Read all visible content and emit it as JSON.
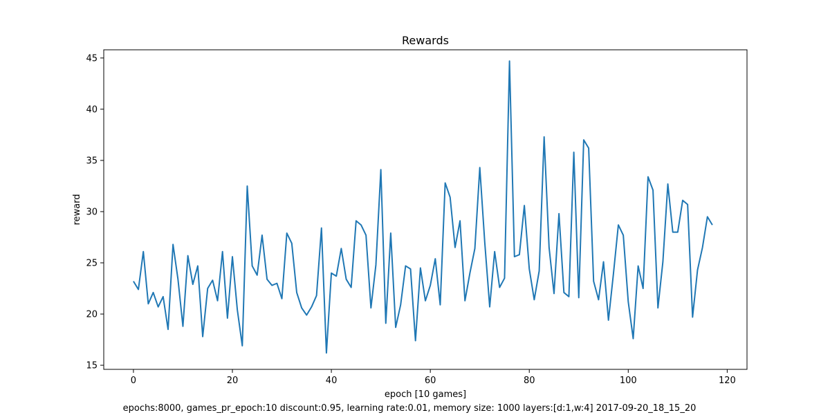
{
  "chart_data": {
    "type": "line",
    "title": "Rewards",
    "xlabel": "epoch [10 games]",
    "ylabel": "reward",
    "caption": "epochs:8000, games_pr_epoch:10 discount:0.95, learning rate:0.01, memory size: 1000 layers:[d:1,w:4] 2017-09-20_18_15_20",
    "xlim": [
      -6,
      124
    ],
    "ylim": [
      14.6,
      45.8
    ],
    "xticks": [
      0,
      20,
      40,
      60,
      80,
      100,
      120
    ],
    "yticks": [
      15,
      20,
      25,
      30,
      35,
      40,
      45
    ],
    "grid": false,
    "line_color": "#1f77b4",
    "series": [
      {
        "x_start": 0,
        "x_step": 1,
        "values": [
          23.2,
          22.4,
          26.1,
          21.0,
          22.1,
          20.7,
          21.7,
          18.5,
          26.8,
          23.4,
          18.8,
          25.7,
          22.9,
          24.7,
          17.8,
          22.5,
          23.3,
          21.3,
          26.1,
          19.6,
          25.6,
          20.4,
          16.9,
          32.5,
          24.7,
          23.8,
          27.7,
          23.4,
          22.8,
          23.0,
          21.5,
          27.9,
          26.9,
          22.1,
          20.6,
          19.9,
          20.7,
          21.8,
          28.4,
          16.2,
          24.0,
          23.7,
          26.4,
          23.4,
          22.6,
          29.1,
          28.7,
          27.7,
          20.6,
          24.8,
          34.1,
          19.1,
          27.9,
          18.7,
          20.9,
          24.7,
          24.4,
          17.4,
          24.5,
          21.3,
          22.8,
          25.4,
          20.9,
          32.8,
          31.4,
          26.5,
          29.1,
          21.3,
          24.0,
          26.4,
          34.3,
          27.0,
          20.7,
          26.1,
          22.6,
          23.5,
          44.7,
          25.6,
          25.8,
          30.6,
          24.4,
          21.4,
          24.2,
          37.3,
          26.5,
          22.0,
          29.8,
          22.1,
          21.7,
          35.8,
          21.6,
          37.0,
          36.2,
          23.2,
          21.4,
          25.1,
          19.4,
          23.9,
          28.7,
          27.7,
          21.2,
          17.6,
          24.7,
          22.5,
          33.4,
          32.1,
          20.6,
          25.1,
          32.7,
          28.0,
          28.0,
          31.1,
          30.7,
          19.7,
          24.3,
          26.5,
          29.5,
          28.7
        ]
      }
    ]
  }
}
